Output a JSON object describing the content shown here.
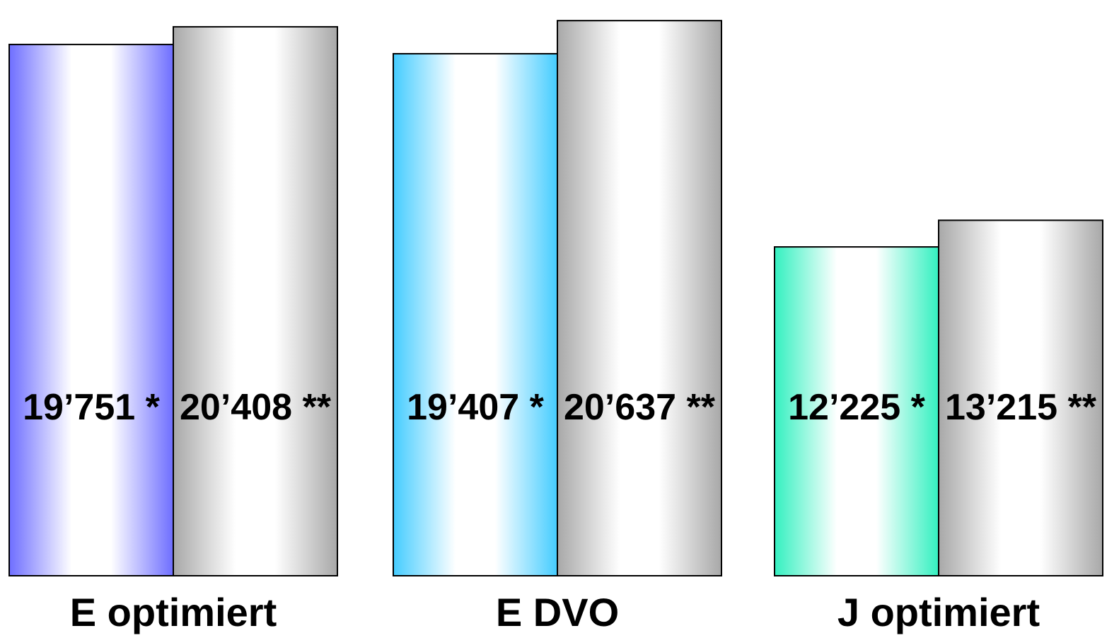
{
  "chart_data": {
    "type": "bar",
    "categories": [
      "E optimiert",
      "E DVO",
      "J optimiert"
    ],
    "series": [
      {
        "values": [
          19751,
          19407,
          12225
        ],
        "labels": [
          "19’751 *",
          "19’407 *",
          "12’225 *"
        ]
      },
      {
        "values": [
          20408,
          20637,
          13215
        ],
        "labels": [
          "20’408 **",
          "20’637 **",
          "13’215 **"
        ]
      }
    ],
    "colors": {
      "primary": [
        "#6e6eff",
        "#44ccff",
        "#33f0c0"
      ],
      "secondary": "#a8a8a8"
    },
    "grid": false,
    "title": "",
    "xlabel": "",
    "ylabel": ""
  }
}
